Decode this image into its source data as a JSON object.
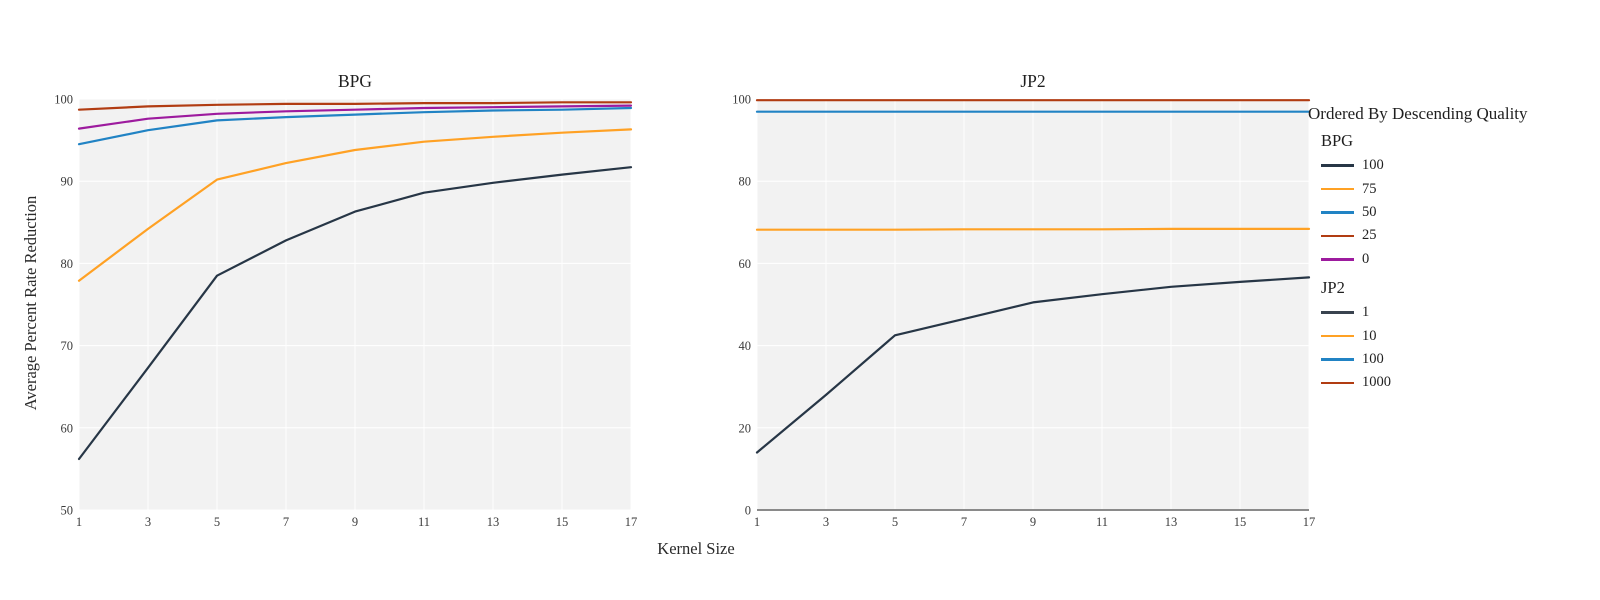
{
  "xlabel": "Kernel Size",
  "palette": {
    "navy": "#273646",
    "orange": "#ffa124",
    "blue": "#2183c4",
    "red": "#b13c12",
    "purple": "#9d1b9e",
    "plot_background": "#f2f2f2",
    "gridline": "#ffffff",
    "axis_text": "#3b3b3b",
    "baseline": "#8a8a8a"
  },
  "chart_data": [
    {
      "type": "line",
      "title": "BPG",
      "ylabel": "Average Percent Rate Reduction",
      "x": [
        1,
        3,
        5,
        7,
        9,
        11,
        13,
        15,
        17
      ],
      "xticks": [
        1,
        3,
        5,
        7,
        9,
        11,
        13,
        15,
        17
      ],
      "ylim": [
        50,
        100
      ],
      "yticks": [
        50,
        60,
        70,
        80,
        90,
        100
      ],
      "grid": true,
      "zero_baseline": false,
      "series": [
        {
          "name": "100",
          "color": "#273646",
          "values": [
            56.2,
            67.3,
            78.5,
            82.8,
            86.3,
            88.6,
            89.8,
            90.8,
            91.7
          ]
        },
        {
          "name": "75",
          "color": "#ffa124",
          "values": [
            77.9,
            84.2,
            90.2,
            92.2,
            93.8,
            94.8,
            95.4,
            95.9,
            96.3
          ]
        },
        {
          "name": "50",
          "color": "#2183c4",
          "values": [
            94.5,
            96.2,
            97.4,
            97.8,
            98.1,
            98.4,
            98.6,
            98.7,
            98.9
          ]
        },
        {
          "name": "25",
          "color": "#b13c12",
          "values": [
            98.7,
            99.1,
            99.3,
            99.4,
            99.4,
            99.5,
            99.5,
            99.6,
            99.6
          ]
        },
        {
          "name": "0",
          "color": "#9d1b9e",
          "values": [
            96.4,
            97.6,
            98.2,
            98.5,
            98.7,
            98.9,
            99.0,
            99.1,
            99.2
          ]
        }
      ]
    },
    {
      "type": "line",
      "title": "JP2",
      "ylabel": "",
      "x": [
        1,
        3,
        5,
        7,
        9,
        11,
        13,
        15,
        17
      ],
      "xticks": [
        1,
        3,
        5,
        7,
        9,
        11,
        13,
        15,
        17
      ],
      "ylim": [
        0,
        100
      ],
      "yticks": [
        0,
        20,
        40,
        60,
        80,
        100
      ],
      "grid": true,
      "zero_baseline": true,
      "series": [
        {
          "name": "1",
          "color": "#273646",
          "values": [
            14.0,
            28.0,
            42.5,
            46.5,
            50.5,
            52.5,
            54.3,
            55.5,
            56.6
          ]
        },
        {
          "name": "10",
          "color": "#ffa124",
          "values": [
            68.2,
            68.2,
            68.2,
            68.3,
            68.3,
            68.3,
            68.4,
            68.4,
            68.4
          ]
        },
        {
          "name": "100",
          "color": "#2183c4",
          "values": [
            96.9,
            96.9,
            96.9,
            96.9,
            96.9,
            96.9,
            96.9,
            96.9,
            96.9
          ]
        },
        {
          "name": "1000",
          "color": "#b13c12",
          "values": [
            99.7,
            99.7,
            99.7,
            99.7,
            99.7,
            99.7,
            99.7,
            99.7,
            99.7
          ]
        }
      ]
    }
  ],
  "legend": {
    "title": "Ordered By Descending Quality",
    "position": "right",
    "groups": [
      {
        "label": "BPG",
        "items": [
          {
            "label": "100",
            "color": "#273646"
          },
          {
            "label": "75",
            "color": "#ffa124"
          },
          {
            "label": "50",
            "color": "#2183c4"
          },
          {
            "label": "25",
            "color": "#b13c12"
          },
          {
            "label": "0",
            "color": "#9d1b9e"
          }
        ]
      },
      {
        "label": "JP2",
        "items": [
          {
            "label": "1",
            "color": "#39434f"
          },
          {
            "label": "10",
            "color": "#ffa124"
          },
          {
            "label": "100",
            "color": "#2183c4"
          },
          {
            "label": "1000",
            "color": "#b13c12"
          }
        ]
      }
    ]
  }
}
